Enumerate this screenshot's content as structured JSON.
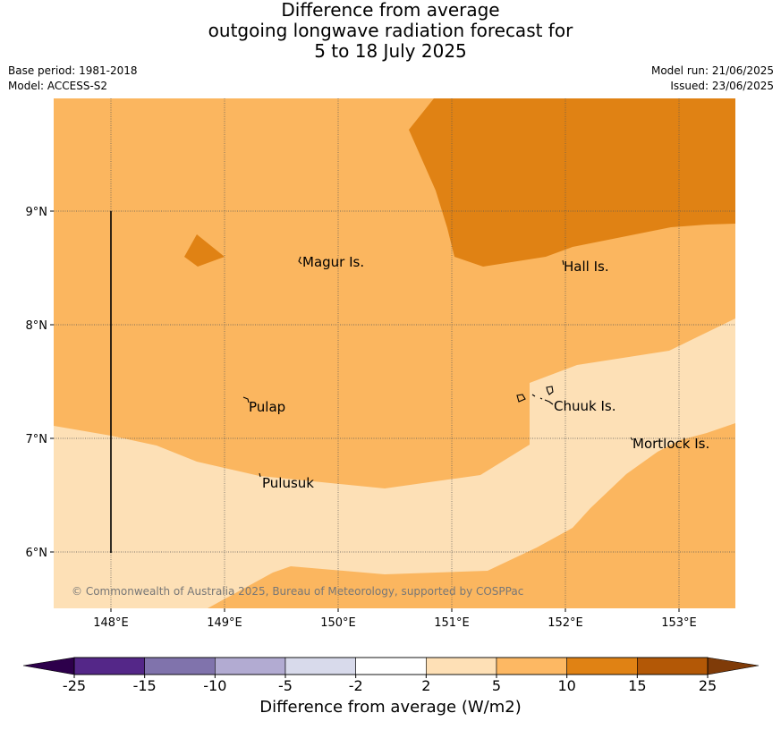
{
  "title": {
    "line1": "Difference from average",
    "line2": "outgoing longwave radiation forecast for",
    "line3": "5 to 18 July 2025"
  },
  "meta_left": {
    "base_period": "Base period: 1981-2018",
    "model": "Model: ACCESS-S2"
  },
  "meta_right": {
    "model_run": "Model run: 21/06/2025",
    "issued": "Issued: 23/06/2025"
  },
  "map": {
    "lon_ticks": [
      "148°E",
      "149°E",
      "150°E",
      "151°E",
      "152°E",
      "153°E"
    ],
    "lat_ticks": [
      "9°N",
      "8°N",
      "7°N",
      "6°N"
    ],
    "places": [
      {
        "name": "Magur Is."
      },
      {
        "name": "Hall Is."
      },
      {
        "name": "Pulap"
      },
      {
        "name": "Chuuk Is."
      },
      {
        "name": "Mortlock Is."
      },
      {
        "name": "Pulusuk"
      }
    ],
    "copyright": "© Commonwealth of Australia 2025, Bureau of Meteorology, supported by COSPPac",
    "fill_colors": {
      "light": "#fde0b6",
      "mid": "#fbb65f",
      "dark": "#e08214"
    }
  },
  "colorbar": {
    "label": "Difference from average (W/m2)",
    "ticks": [
      "-25",
      "-15",
      "-10",
      "-5",
      "-2",
      "2",
      "5",
      "10",
      "15",
      "25"
    ],
    "under_color": "#2d004b",
    "over_color": "#7f3b08",
    "colors": [
      "#542788",
      "#8073ac",
      "#b2abd2",
      "#d8daeb",
      "#ffffff",
      "#fee0b6",
      "#fdb863",
      "#e08214",
      "#b35806"
    ]
  }
}
